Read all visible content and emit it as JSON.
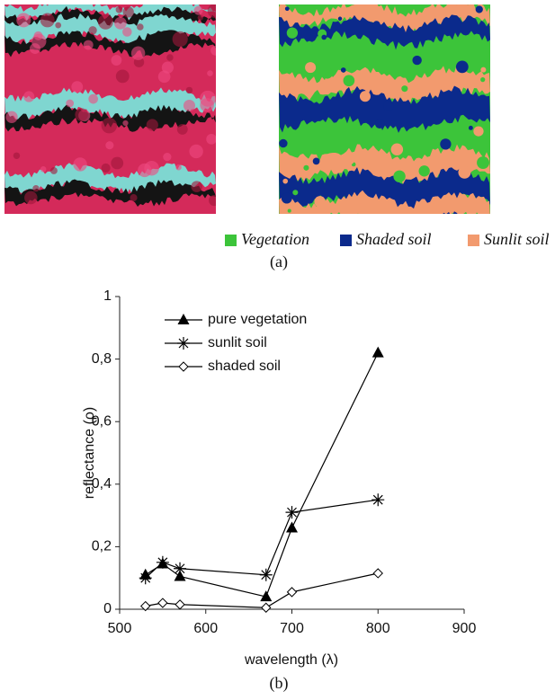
{
  "figure": {
    "legend": [
      {
        "label": "Vegetation",
        "color": "#3cc43a"
      },
      {
        "label": "Shaded soil",
        "color": "#0b2a8c"
      },
      {
        "label": "Sunlit soil",
        "color": "#f29a6e"
      }
    ],
    "caption": "(a)"
  },
  "chart_data": {
    "type": "line",
    "x_label": "wavelength (λ)",
    "y_label": "reflectance (ρ)",
    "caption": "(b)",
    "xlim": [
      500,
      900
    ],
    "xticks": [
      500,
      600,
      700,
      800,
      900
    ],
    "ylim": [
      0,
      1
    ],
    "yticks": [
      0,
      {
        "value": 0.2,
        "label": "0,2"
      },
      {
        "value": 0.4,
        "label": "0,4"
      },
      {
        "value": 0.6,
        "label": "0,6"
      },
      {
        "value": 0.8,
        "label": "0,8"
      },
      1
    ],
    "legend_position": "upper left",
    "x": [
      530,
      550,
      570,
      670,
      700,
      800
    ],
    "series": [
      {
        "name": "pure vegetation",
        "color": "#000000",
        "marker": "triangle",
        "values": [
          0.11,
          0.145,
          0.105,
          0.04,
          0.26,
          0.82
        ]
      },
      {
        "name": "sunlit soil",
        "color": "#000000",
        "marker": "asterisk",
        "values": [
          0.1,
          0.15,
          0.13,
          0.11,
          0.31,
          0.35
        ]
      },
      {
        "name": "shaded soil",
        "color": "#000000",
        "marker": "diamond",
        "values": [
          0.01,
          0.02,
          0.015,
          0.005,
          0.055,
          0.115
        ]
      }
    ]
  }
}
